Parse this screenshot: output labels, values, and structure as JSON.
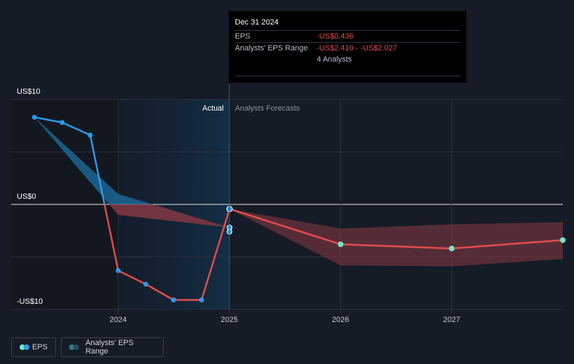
{
  "chart_data": {
    "type": "line",
    "y_axis": {
      "top_label": "US$10",
      "zero_label": "US$0",
      "bottom_label": "-US$10",
      "ylim": [
        -10,
        10
      ]
    },
    "x_axis": {
      "tick_labels": [
        "2024",
        "2025",
        "2026",
        "2027"
      ]
    },
    "section_labels": {
      "actual": "Actual",
      "forecast": "Analysts Forecasts"
    },
    "series": [
      {
        "name": "EPS",
        "actual_points": [
          {
            "x": "2023-03-31",
            "y": 8.3
          },
          {
            "x": "2023-06-30",
            "y": 7.8
          },
          {
            "x": "2023-09-30",
            "y": 6.6
          },
          {
            "x": "2023-12-31",
            "y": -6.3
          },
          {
            "x": "2024-03-31",
            "y": -7.6
          },
          {
            "x": "2024-06-30",
            "y": -9.1
          },
          {
            "x": "2024-09-30",
            "y": -9.1
          },
          {
            "x": "2024-12-31",
            "y": -0.436
          }
        ],
        "forecast_points": [
          {
            "x": "2024-12-31",
            "y": -0.436
          },
          {
            "x": "2025-12-31",
            "y": -3.8
          },
          {
            "x": "2026-12-31",
            "y": -4.2
          },
          {
            "x": "2027-12-31",
            "y": -3.4
          }
        ]
      },
      {
        "name": "Analysts' EPS Range",
        "past_low": [
          {
            "x": "2023-03-31",
            "y": 8.3
          },
          {
            "x": "2023-12-31",
            "y": -1.0
          },
          {
            "x": "2024-12-31",
            "y": -2.2
          }
        ],
        "past_high": [
          {
            "x": "2023-03-31",
            "y": 8.3
          },
          {
            "x": "2023-12-31",
            "y": 1.0
          },
          {
            "x": "2024-12-31",
            "y": -2.2
          }
        ],
        "forecast_low": [
          {
            "x": "2024-12-31",
            "y": -0.436
          },
          {
            "x": "2025-12-31",
            "y": -5.8
          },
          {
            "x": "2026-12-31",
            "y": -5.9
          },
          {
            "x": "2027-12-31",
            "y": -5.2
          }
        ],
        "forecast_high": [
          {
            "x": "2024-12-31",
            "y": -0.436
          },
          {
            "x": "2025-12-31",
            "y": -2.3
          },
          {
            "x": "2026-12-31",
            "y": -1.9
          },
          {
            "x": "2027-12-31",
            "y": -1.7
          }
        ]
      }
    ],
    "grid": true,
    "colors": {
      "background": "#151b27",
      "eps_positive": "#2b9aea",
      "eps_negative": "#e64b4b",
      "forecast_marker": "#6ee8c4",
      "range_positive": "#1f6fa3",
      "range_negative": "#8a3a44",
      "actual_shade": "#132b3f"
    }
  },
  "tooltip": {
    "date": "Dec 31 2024",
    "eps_label": "EPS",
    "eps_value": "-US$0.436",
    "range_label": "Analysts' EPS Range",
    "range_value": "-US$2.410 - -US$2.027",
    "analysts": "4 Analysts"
  },
  "legend": {
    "eps": "EPS",
    "range": "Analysts' EPS Range"
  }
}
